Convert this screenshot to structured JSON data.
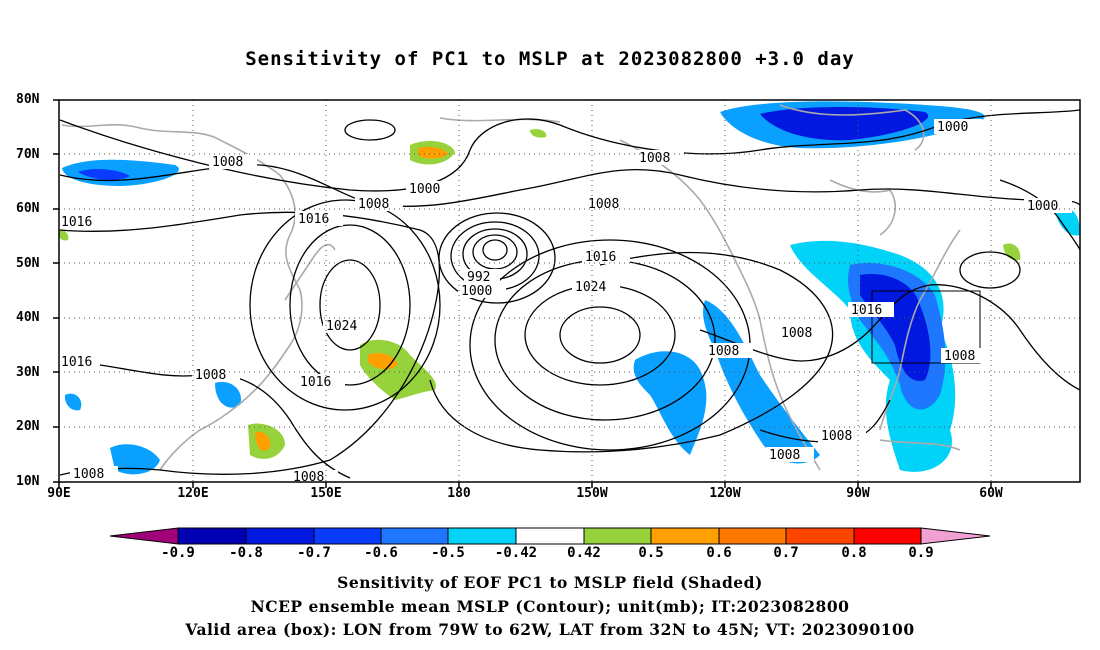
{
  "title": "Sensitivity of PC1 to MSLP at 2023082800 +3.0 day",
  "captions": [
    "Sensitivity of EOF PC1 to MSLP field (Shaded)",
    "NCEP ensemble mean MSLP (Contour); unit(mb); IT:2023082800",
    "Valid area (box): LON from 79W to 62W, LAT from 32N to 45N; VT: 2023090100"
  ],
  "lat_labels": [
    "80N",
    "70N",
    "60N",
    "50N",
    "40N",
    "30N",
    "20N",
    "10N"
  ],
  "lon_labels": [
    "90E",
    "120E",
    "150E",
    "180",
    "150W",
    "120W",
    "90W",
    "60W"
  ],
  "colorbar": {
    "labels": [
      "-0.9",
      "-0.8",
      "-0.7",
      "-0.6",
      "-0.5",
      "-0.42",
      "0.42",
      "0.5",
      "0.6",
      "0.7",
      "0.8",
      "0.9"
    ],
    "colors": [
      "#a0007a",
      "#0000b4",
      "#0018e0",
      "#0a3cff",
      "#1e78ff",
      "#0aa0ff",
      "#00d2f8",
      "#ffffff",
      "#96d23c",
      "#ffa000",
      "#ff7800",
      "#ff4600",
      "#ff1e00",
      "#ff0000",
      "#f0a0d2"
    ]
  },
  "contour_labels": [
    "1008",
    "1000",
    "1016",
    "1008",
    "1008",
    "1000",
    "1008",
    "1000",
    "992",
    "1000",
    "1016",
    "1024",
    "1024",
    "1016",
    "1008",
    "1016",
    "1008",
    "1008",
    "1016",
    "1008",
    "1008",
    "1008",
    "1016",
    "1008",
    "1008"
  ],
  "valid_box": {
    "lon_from": "79W",
    "lon_to": "62W",
    "lat_from": "32N",
    "lat_to": "45N"
  }
}
